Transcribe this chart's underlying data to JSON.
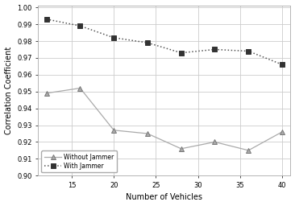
{
  "without_jammer_x": [
    12,
    16,
    20,
    24,
    28,
    32,
    36,
    40
  ],
  "without_jammer_y": [
    0.949,
    0.952,
    0.927,
    0.925,
    0.916,
    0.92,
    0.915,
    0.926
  ],
  "with_jammer_x": [
    12,
    16,
    20,
    24,
    28,
    32,
    36,
    40
  ],
  "with_jammer_y": [
    0.993,
    0.989,
    0.982,
    0.979,
    0.973,
    0.975,
    0.974,
    0.966
  ],
  "xlabel": "Number of Vehicles",
  "ylabel": "Correlation Coefficient",
  "xlim": [
    11,
    41
  ],
  "ylim": [
    0.9,
    1.001
  ],
  "xticks": [
    15,
    20,
    25,
    30,
    35,
    40
  ],
  "yticks": [
    0.9,
    0.91,
    0.92,
    0.93,
    0.94,
    0.95,
    0.96,
    0.97,
    0.98,
    0.99,
    1.0
  ],
  "legend_without": "Without Jammer",
  "legend_with": "With Jammer",
  "line_color_without": "#aaaaaa",
  "line_color_with": "#555555",
  "bg_color": "#ffffff",
  "grid_color": "#cccccc"
}
